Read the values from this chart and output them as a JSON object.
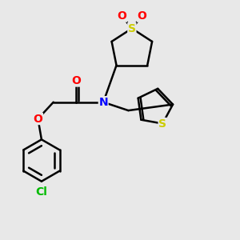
{
  "background_color": "#e8e8e8",
  "atom_colors": {
    "C": "#000000",
    "N": "#0000ff",
    "O": "#ff0000",
    "S_sulfo": "#cccc00",
    "S_thio": "#cccc00",
    "Cl": "#00bb00"
  },
  "bond_color": "#000000",
  "bond_width": 1.8,
  "font_size": 10,
  "fig_size": [
    3.0,
    3.0
  ],
  "dpi": 100
}
